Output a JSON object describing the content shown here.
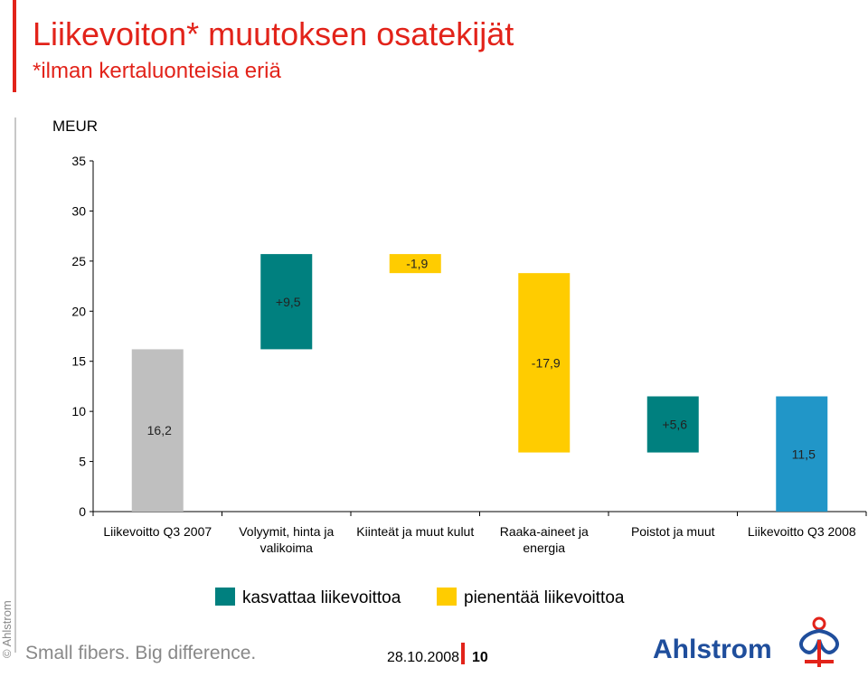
{
  "chart_data": {
    "type": "waterfall",
    "title": "Liikevoiton* muutoksen osatekijät",
    "subtitle": "*ilman kertaluonteisia eriä",
    "y_label": "MEUR",
    "categories": [
      "Liikevoitto Q3 2007",
      "Volyymit, hinta ja valikoima",
      "Kiinteät ja muut kulut",
      "Raaka-aineet ja energia",
      "Poistot ja muut",
      "Liikevoitto Q3 2008"
    ],
    "values": [
      16.2,
      9.5,
      -1.9,
      -17.9,
      5.6,
      11.5
    ],
    "value_labels": [
      "16,2",
      "+9,5",
      "-1,9",
      "-17,9",
      "+5,6",
      "11,5"
    ],
    "colors": [
      "#bfbfbf",
      "#00807f",
      "#ffcc00",
      "#ffcc00",
      "#00807f",
      "#2196c8"
    ],
    "legend": [
      {
        "name": "kasvattaa liikevoittoa",
        "color": "#00807f"
      },
      {
        "name": "pienentää liikevoittoa",
        "color": "#ffcc00"
      }
    ],
    "ylim": [
      0,
      35
    ],
    "yticks": [
      0,
      5,
      10,
      15,
      20,
      25,
      30,
      35
    ]
  },
  "footer": {
    "tagline": "Small fibers. Big difference.",
    "date": "28.10.2008",
    "page": "10",
    "logo": "Ahlstrom",
    "copyright": "© Ahlstrom"
  }
}
